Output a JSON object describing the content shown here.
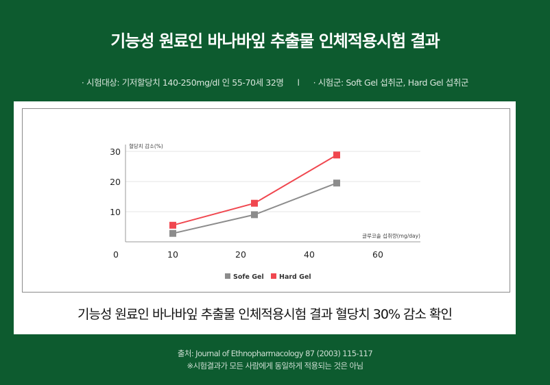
{
  "header": {
    "title": "기능성 원료인 바나바잎  추출물 인체적용시험 결과",
    "subject_left": "· 시험대상: 기저할당치 140-250mg/dl 인 55-70세 32명",
    "divider": "l",
    "subject_right": "· 시험군: Soft Gel 섭취군, Hard Gel 섭취군"
  },
  "chart_data": {
    "type": "line",
    "ylabel": "혈당치 감소(%)",
    "xlabel": "글루코솔 섭취량(mg/day)",
    "x_ticks": [
      0,
      10,
      20,
      40,
      60
    ],
    "y_ticks": [
      10,
      20,
      30
    ],
    "series": [
      {
        "name": "Sofe Gel",
        "color": "#8c8c8c",
        "points": [
          [
            10,
            2.8
          ],
          [
            24,
            9.0
          ],
          [
            48,
            19.5
          ]
        ]
      },
      {
        "name": "Hard Gel",
        "color": "#f0474f",
        "points": [
          [
            10,
            5.5
          ],
          [
            24,
            12.8
          ],
          [
            48,
            28.8
          ]
        ]
      }
    ],
    "grid": true,
    "legend_position": "bottom-center"
  },
  "caption": "기능성 원료인 바나바잎 추출물 인체적용시험 결과 혈당치 30% 감소 확인",
  "footer": {
    "source": "출처: Journal of Ethnopharmacology 87 (2003) 115-117",
    "note": "※시험결과가 모든 사람에게 동일하게 적용되는 것은 아님"
  }
}
